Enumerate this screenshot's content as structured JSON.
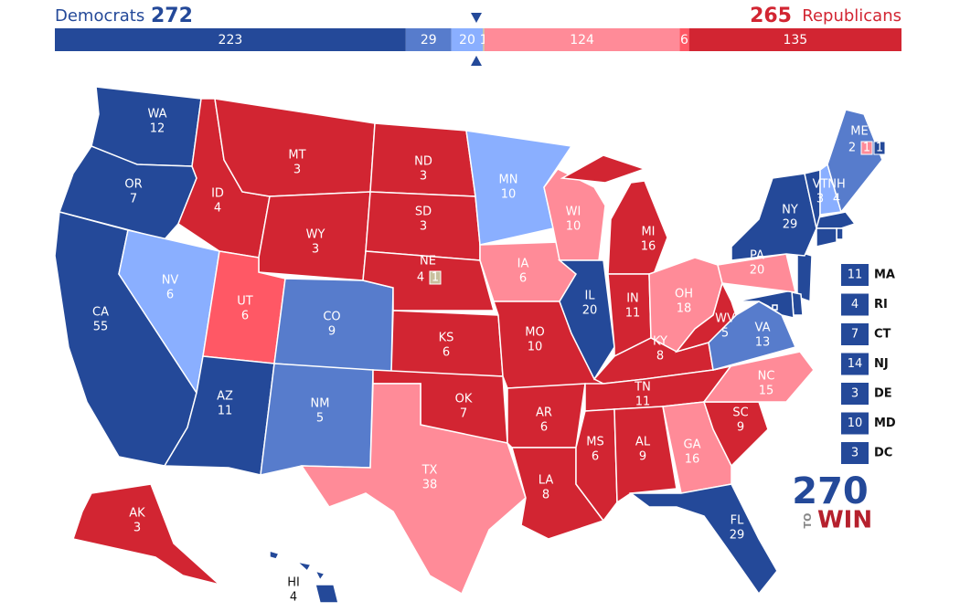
{
  "header": {
    "left_label": "Democrats",
    "left_total": 272,
    "right_total": 265,
    "right_label": "Republicans"
  },
  "bar": [
    {
      "value": 223,
      "color": "#244999"
    },
    {
      "value": 29,
      "color": "#577ccc"
    },
    {
      "value": 20,
      "color": "#8aafff"
    },
    {
      "value": 1,
      "color": "#c9c09e"
    },
    {
      "value": 124,
      "color": "#ff8b98"
    },
    {
      "value": 6,
      "color": "#ff5865"
    },
    {
      "value": 135,
      "color": "#d22532"
    }
  ],
  "states": [
    {
      "abbr": "WA",
      "ev": 12,
      "color": "#244999"
    },
    {
      "abbr": "OR",
      "ev": 7,
      "color": "#244999"
    },
    {
      "abbr": "CA",
      "ev": 55,
      "color": "#244999"
    },
    {
      "abbr": "NV",
      "ev": 6,
      "color": "#8aafff"
    },
    {
      "abbr": "ID",
      "ev": 4,
      "color": "#d22532"
    },
    {
      "abbr": "MT",
      "ev": 3,
      "color": "#d22532"
    },
    {
      "abbr": "WY",
      "ev": 3,
      "color": "#d22532"
    },
    {
      "abbr": "UT",
      "ev": 6,
      "color": "#ff5865"
    },
    {
      "abbr": "AZ",
      "ev": 11,
      "color": "#244999"
    },
    {
      "abbr": "CO",
      "ev": 9,
      "color": "#577ccc"
    },
    {
      "abbr": "NM",
      "ev": 5,
      "color": "#577ccc"
    },
    {
      "abbr": "ND",
      "ev": 3,
      "color": "#d22532"
    },
    {
      "abbr": "SD",
      "ev": 3,
      "color": "#d22532"
    },
    {
      "abbr": "NE",
      "ev": 4,
      "color": "#d22532",
      "districts": [
        {
          "ev": 1,
          "color": "#c9c09e"
        }
      ]
    },
    {
      "abbr": "KS",
      "ev": 6,
      "color": "#d22532"
    },
    {
      "abbr": "OK",
      "ev": 7,
      "color": "#d22532"
    },
    {
      "abbr": "TX",
      "ev": 38,
      "color": "#ff8b98"
    },
    {
      "abbr": "MN",
      "ev": 10,
      "color": "#8aafff"
    },
    {
      "abbr": "IA",
      "ev": 6,
      "color": "#ff8b98"
    },
    {
      "abbr": "MO",
      "ev": 10,
      "color": "#d22532"
    },
    {
      "abbr": "AR",
      "ev": 6,
      "color": "#d22532"
    },
    {
      "abbr": "LA",
      "ev": 8,
      "color": "#d22532"
    },
    {
      "abbr": "WI",
      "ev": 10,
      "color": "#ff8b98"
    },
    {
      "abbr": "IL",
      "ev": 20,
      "color": "#244999"
    },
    {
      "abbr": "MI",
      "ev": 16,
      "color": "#d22532"
    },
    {
      "abbr": "IN",
      "ev": 11,
      "color": "#d22532"
    },
    {
      "abbr": "OH",
      "ev": 18,
      "color": "#ff8b98"
    },
    {
      "abbr": "KY",
      "ev": 8,
      "color": "#d22532"
    },
    {
      "abbr": "TN",
      "ev": 11,
      "color": "#d22532"
    },
    {
      "abbr": "MS",
      "ev": 6,
      "color": "#d22532"
    },
    {
      "abbr": "AL",
      "ev": 9,
      "color": "#d22532"
    },
    {
      "abbr": "GA",
      "ev": 16,
      "color": "#ff8b98"
    },
    {
      "abbr": "FL",
      "ev": 29,
      "color": "#244999"
    },
    {
      "abbr": "SC",
      "ev": 9,
      "color": "#d22532"
    },
    {
      "abbr": "NC",
      "ev": 15,
      "color": "#ff8b98"
    },
    {
      "abbr": "VA",
      "ev": 13,
      "color": "#577ccc"
    },
    {
      "abbr": "WV",
      "ev": 5,
      "color": "#d22532"
    },
    {
      "abbr": "PA",
      "ev": 20,
      "color": "#ff8b98"
    },
    {
      "abbr": "NY",
      "ev": 29,
      "color": "#244999"
    },
    {
      "abbr": "VT",
      "ev": 3,
      "color": "#244999"
    },
    {
      "abbr": "NH",
      "ev": 4,
      "color": "#8aafff"
    },
    {
      "abbr": "ME",
      "ev": 2,
      "color": "#577ccc",
      "districts": [
        {
          "ev": 1,
          "color": "#ff8b98"
        },
        {
          "ev": 1,
          "color": "#244999"
        }
      ]
    },
    {
      "abbr": "AK",
      "ev": 3,
      "color": "#d22532"
    },
    {
      "abbr": "HI",
      "ev": 4,
      "color": "#244999"
    }
  ],
  "small_states": [
    {
      "abbr": "MA",
      "ev": 11,
      "color": "#244999"
    },
    {
      "abbr": "RI",
      "ev": 4,
      "color": "#244999"
    },
    {
      "abbr": "CT",
      "ev": 7,
      "color": "#244999"
    },
    {
      "abbr": "NJ",
      "ev": 14,
      "color": "#244999"
    },
    {
      "abbr": "DE",
      "ev": 3,
      "color": "#244999"
    },
    {
      "abbr": "MD",
      "ev": 10,
      "color": "#244999"
    },
    {
      "abbr": "DC",
      "ev": 3,
      "color": "#244999"
    }
  ],
  "logo": {
    "number": "270",
    "to": "TO",
    "win": "WIN"
  }
}
